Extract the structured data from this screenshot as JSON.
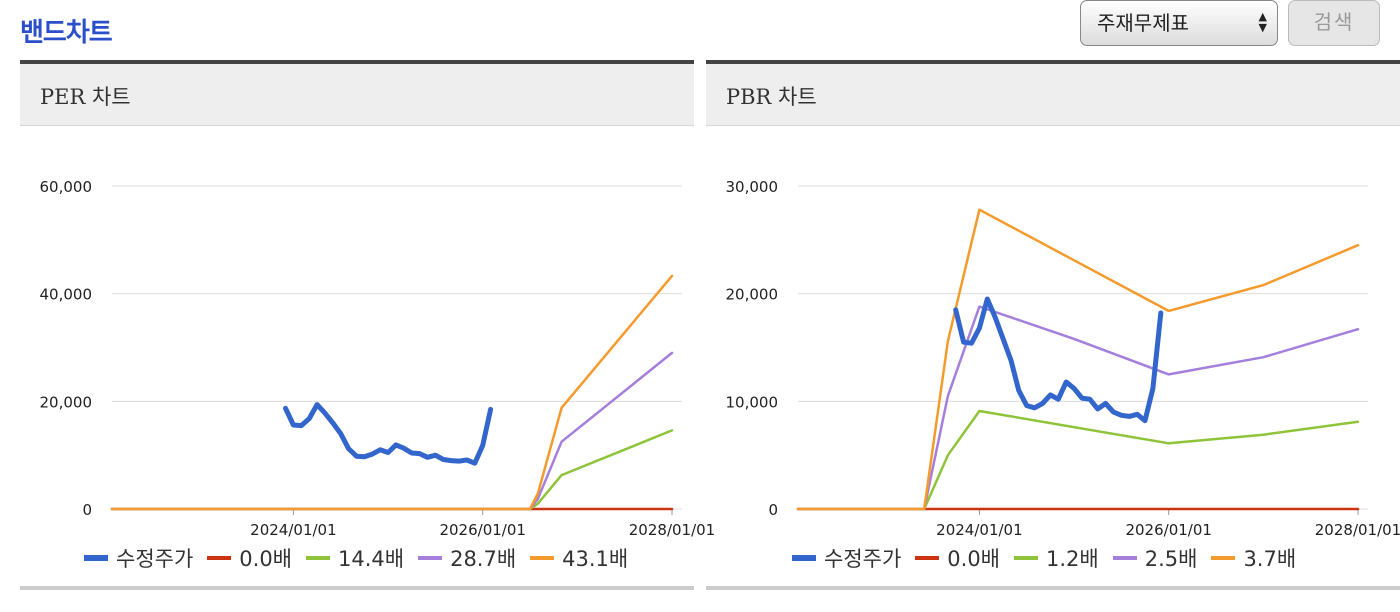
{
  "header": {
    "title": "밴드차트",
    "select_value": "주재무제표",
    "search_label": "검색"
  },
  "panels": [
    {
      "title": "PER 차트"
    },
    {
      "title": "PBR 차트"
    }
  ],
  "chart_data": [
    {
      "type": "line",
      "title": "PER 차트",
      "xlabel": "",
      "ylabel": "",
      "ylim": [
        0,
        60000
      ],
      "y_ticks": [
        0,
        20000,
        40000,
        60000
      ],
      "y_tick_labels": [
        "0",
        "20,000",
        "40,000",
        "60,000"
      ],
      "xlim": [
        "2022-02",
        "2028-01"
      ],
      "x_ticks": [
        "2024-01",
        "2026-01",
        "2028-01"
      ],
      "x_tick_labels": [
        "2024/01/01",
        "2026/01/01",
        "2028/01/01"
      ],
      "grid": true,
      "legend": "bottom",
      "series": [
        {
          "name": "수정주가",
          "color": "#3366cc",
          "width": 5,
          "points": [
            [
              "2023-12",
              18700
            ],
            [
              "2024-01",
              15600
            ],
            [
              "2024-02",
              15500
            ],
            [
              "2024-03",
              16800
            ],
            [
              "2024-04",
              19400
            ],
            [
              "2024-05",
              17800
            ],
            [
              "2024-06",
              16000
            ],
            [
              "2024-07",
              14000
            ],
            [
              "2024-08",
              11200
            ],
            [
              "2024-09",
              9800
            ],
            [
              "2024-10",
              9700
            ],
            [
              "2024-11",
              10200
            ],
            [
              "2024-12",
              11000
            ],
            [
              "2025-01",
              10500
            ],
            [
              "2025-02",
              11900
            ],
            [
              "2025-03",
              11300
            ],
            [
              "2025-04",
              10400
            ],
            [
              "2025-05",
              10300
            ],
            [
              "2025-06",
              9600
            ],
            [
              "2025-07",
              10000
            ],
            [
              "2025-08",
              9200
            ],
            [
              "2025-09",
              9000
            ],
            [
              "2025-10",
              8900
            ],
            [
              "2025-11",
              9100
            ],
            [
              "2025-12",
              8500
            ],
            [
              "2026-01",
              11800
            ],
            [
              "2026-02",
              18500
            ]
          ]
        },
        {
          "name": "0.0배",
          "color": "#cc3311",
          "width": 2.5,
          "points": [
            [
              "2022-02",
              0
            ],
            [
              "2028-01",
              0
            ]
          ]
        },
        {
          "name": "14.4배",
          "color": "#8fc43a",
          "width": 2.5,
          "points": [
            [
              "2022-02",
              0
            ],
            [
              "2026-07",
              0
            ],
            [
              "2026-08",
              1000
            ],
            [
              "2026-11",
              6300
            ],
            [
              "2028-01",
              14600
            ]
          ]
        },
        {
          "name": "28.7배",
          "color": "#a57fdc",
          "width": 2.5,
          "points": [
            [
              "2022-02",
              0
            ],
            [
              "2026-07",
              0
            ],
            [
              "2026-08",
              1900
            ],
            [
              "2026-11",
              12500
            ],
            [
              "2028-01",
              29000
            ]
          ]
        },
        {
          "name": "43.1배",
          "color": "#f59a2c",
          "width": 2.5,
          "points": [
            [
              "2022-02",
              0
            ],
            [
              "2026-07",
              0
            ],
            [
              "2026-08",
              2900
            ],
            [
              "2026-11",
              18800
            ],
            [
              "2028-01",
              43300
            ]
          ]
        }
      ]
    },
    {
      "type": "line",
      "title": "PBR 차트",
      "xlabel": "",
      "ylabel": "",
      "ylim": [
        0,
        30000
      ],
      "y_ticks": [
        0,
        10000,
        20000,
        30000
      ],
      "y_tick_labels": [
        "0",
        "10,000",
        "20,000",
        "30,000"
      ],
      "xlim": [
        "2022-02",
        "2028-01"
      ],
      "x_ticks": [
        "2024-01",
        "2026-01",
        "2028-01"
      ],
      "x_tick_labels": [
        "2024/01/01",
        "2026/01/01",
        "2028/01/01"
      ],
      "grid": true,
      "legend": "bottom",
      "series": [
        {
          "name": "수정주가",
          "color": "#3366cc",
          "width": 5,
          "points": [
            [
              "2023-10",
              18500
            ],
            [
              "2023-11",
              15500
            ],
            [
              "2023-12",
              15400
            ],
            [
              "2024-01",
              16800
            ],
            [
              "2024-02",
              19500
            ],
            [
              "2024-03",
              17800
            ],
            [
              "2024-04",
              15800
            ],
            [
              "2024-05",
              13800
            ],
            [
              "2024-06",
              11000
            ],
            [
              "2024-07",
              9600
            ],
            [
              "2024-08",
              9400
            ],
            [
              "2024-09",
              9800
            ],
            [
              "2024-10",
              10600
            ],
            [
              "2024-11",
              10200
            ],
            [
              "2024-12",
              11800
            ],
            [
              "2025-01",
              11200
            ],
            [
              "2025-02",
              10300
            ],
            [
              "2025-03",
              10200
            ],
            [
              "2025-04",
              9300
            ],
            [
              "2025-05",
              9800
            ],
            [
              "2025-06",
              9000
            ],
            [
              "2025-07",
              8700
            ],
            [
              "2025-08",
              8600
            ],
            [
              "2025-09",
              8800
            ],
            [
              "2025-10",
              8200
            ],
            [
              "2025-11",
              11200
            ],
            [
              "2025-12",
              18200
            ]
          ]
        },
        {
          "name": "0.0배",
          "color": "#cc3311",
          "width": 2.5,
          "points": [
            [
              "2022-02",
              0
            ],
            [
              "2028-01",
              0
            ]
          ]
        },
        {
          "name": "1.2배",
          "color": "#8fc43a",
          "width": 2.5,
          "points": [
            [
              "2022-02",
              0
            ],
            [
              "2023-06",
              0
            ],
            [
              "2023-09",
              5000
            ],
            [
              "2024-01",
              9100
            ],
            [
              "2026-01",
              6100
            ],
            [
              "2027-01",
              6900
            ],
            [
              "2028-01",
              8100
            ]
          ]
        },
        {
          "name": "2.5배",
          "color": "#a57fdc",
          "width": 2.5,
          "points": [
            [
              "2022-02",
              0
            ],
            [
              "2023-06",
              0
            ],
            [
              "2023-09",
              10500
            ],
            [
              "2024-01",
              18800
            ],
            [
              "2025-01",
              15800
            ],
            [
              "2026-01",
              12500
            ],
            [
              "2027-01",
              14100
            ],
            [
              "2028-01",
              16700
            ]
          ]
        },
        {
          "name": "3.7배",
          "color": "#f59a2c",
          "width": 2.5,
          "points": [
            [
              "2022-02",
              0
            ],
            [
              "2023-06",
              0
            ],
            [
              "2023-09",
              15600
            ],
            [
              "2024-01",
              27800
            ],
            [
              "2025-01",
              23100
            ],
            [
              "2026-01",
              18400
            ],
            [
              "2027-01",
              20800
            ],
            [
              "2028-01",
              24500
            ]
          ]
        }
      ]
    }
  ]
}
